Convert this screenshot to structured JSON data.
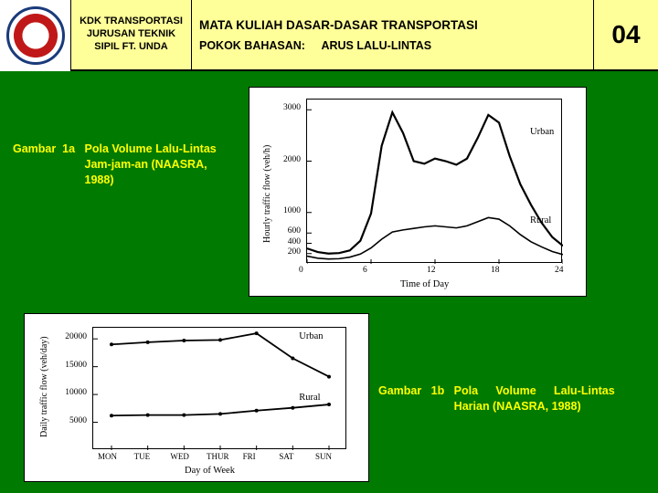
{
  "header": {
    "dept": "KDK TRANSPORTASI JURUSAN TEKNIK SIPIL FT. UNDA",
    "course_title": "MATA KULIAH DASAR-DASAR TRANSPORTASI",
    "topic_label": "POKOK BAHASAN:",
    "topic_value": "ARUS LALU-LINTAS",
    "page_num": "04"
  },
  "caption_1a": {
    "label": "Gambar  1a   ",
    "text": "Pola Volume Lalu-Lintas Jam-jam-an (NAASRA, 1988)"
  },
  "caption_1b": {
    "label": "Gambar   1b   ",
    "text": "Pola Volume Lalu-Lintas Harian (NAASRA, 1988)"
  },
  "chart1": {
    "type": "line",
    "ylabel": "Hourly traffic flow (veh/h)",
    "xlabel": "Time of Day",
    "xlim": [
      0,
      24
    ],
    "ylim": [
      0,
      3200
    ],
    "xticks": [
      0,
      6,
      12,
      18,
      24
    ],
    "yticks": [
      200,
      400,
      600,
      1000,
      2000,
      3000
    ],
    "xtick_labels": [
      "0",
      "6",
      "12",
      "18",
      "24"
    ],
    "ytick_labels": [
      "200",
      "400",
      "600",
      "1000",
      "2000",
      "3000"
    ],
    "line_color": "#000000",
    "background_color": "#ffffff",
    "plot_border_color": "#000000",
    "line_width_urban": 2.2,
    "line_width_rural": 1.6,
    "series": [
      {
        "name": "Urban",
        "label_pos": {
          "x": 21,
          "y": 2550
        },
        "points": [
          [
            0,
            300
          ],
          [
            1,
            230
          ],
          [
            2,
            200
          ],
          [
            3,
            210
          ],
          [
            4,
            260
          ],
          [
            5,
            450
          ],
          [
            6,
            980
          ],
          [
            7,
            2300
          ],
          [
            8,
            2950
          ],
          [
            9,
            2550
          ],
          [
            10,
            2000
          ],
          [
            11,
            1950
          ],
          [
            12,
            2050
          ],
          [
            13,
            2000
          ],
          [
            14,
            1930
          ],
          [
            15,
            2050
          ],
          [
            16,
            2450
          ],
          [
            17,
            2900
          ],
          [
            18,
            2750
          ],
          [
            19,
            2100
          ],
          [
            20,
            1550
          ],
          [
            21,
            1150
          ],
          [
            22,
            800
          ],
          [
            23,
            520
          ],
          [
            24,
            350
          ]
        ]
      },
      {
        "name": "Rural",
        "label_pos": {
          "x": 21,
          "y": 820
        },
        "points": [
          [
            0,
            150
          ],
          [
            1,
            110
          ],
          [
            2,
            95
          ],
          [
            3,
            100
          ],
          [
            4,
            130
          ],
          [
            5,
            190
          ],
          [
            6,
            310
          ],
          [
            7,
            480
          ],
          [
            8,
            620
          ],
          [
            9,
            660
          ],
          [
            10,
            690
          ],
          [
            11,
            720
          ],
          [
            12,
            740
          ],
          [
            13,
            720
          ],
          [
            14,
            700
          ],
          [
            15,
            740
          ],
          [
            16,
            820
          ],
          [
            17,
            900
          ],
          [
            18,
            870
          ],
          [
            19,
            740
          ],
          [
            20,
            570
          ],
          [
            21,
            430
          ],
          [
            22,
            330
          ],
          [
            23,
            240
          ],
          [
            24,
            180
          ]
        ]
      }
    ]
  },
  "chart2": {
    "type": "line",
    "ylabel": "Daily traffic flow (veh/day)",
    "xlabel": "Day of Week",
    "ylim": [
      0,
      22000
    ],
    "yticks": [
      5000,
      10000,
      15000,
      20000
    ],
    "ytick_labels": [
      "5000",
      "10000",
      "15000",
      "20000"
    ],
    "xtick_labels": [
      "MON",
      "TUE",
      "WED",
      "THUR",
      "FRI",
      "SAT",
      "SUN"
    ],
    "line_color": "#000000",
    "background_color": "#ffffff",
    "plot_border_color": "#000000",
    "line_width": 1.8,
    "marker": "circle",
    "marker_size": 4,
    "series": [
      {
        "name": "Urban",
        "label_pos_idx": 5.2,
        "label_pos_y": 20200,
        "points": [
          19000,
          19400,
          19700,
          19800,
          21000,
          16500,
          13200
        ]
      },
      {
        "name": "Rural",
        "label_pos_idx": 5.2,
        "label_pos_y": 9200,
        "points": [
          6200,
          6300,
          6300,
          6500,
          7100,
          7600,
          8200
        ]
      }
    ]
  }
}
